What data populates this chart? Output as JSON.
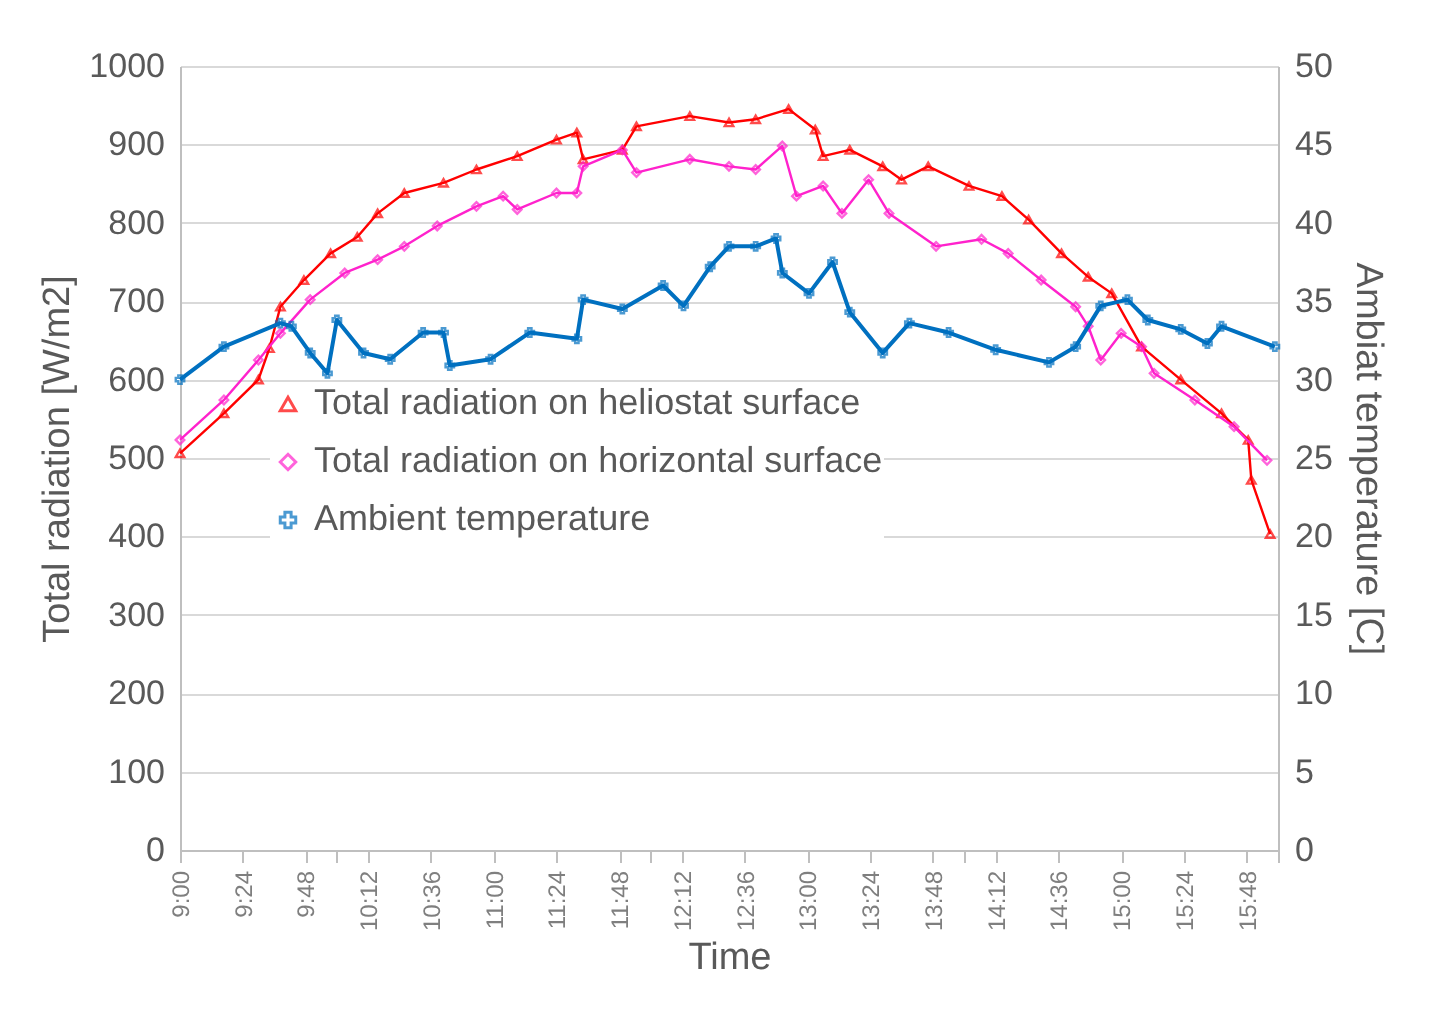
{
  "chart_data": {
    "type": "line",
    "xlabel": "Time",
    "ylabel": "Total radiation [W/m2]",
    "y2label": "Ambiat temperature [C]",
    "xlim": [
      9,
      16
    ],
    "xticks": [
      {
        "value": 9,
        "label": "9:00"
      },
      {
        "value": 9.4,
        "label": "9:24"
      },
      {
        "value": 9.8,
        "label": "9:48"
      },
      {
        "value": 10,
        "label": null
      },
      {
        "value": 10.2,
        "label": "10:12"
      },
      {
        "value": 10.6,
        "label": "10:36"
      },
      {
        "value": 11,
        "label": "11:00"
      },
      {
        "value": 11.4,
        "label": "11:24"
      },
      {
        "value": 11.8,
        "label": "11:48"
      },
      {
        "value": 12,
        "label": null
      },
      {
        "value": 12.2,
        "label": "12:12"
      },
      {
        "value": 12.6,
        "label": "12:36"
      },
      {
        "value": 13,
        "label": "13:00"
      },
      {
        "value": 13.4,
        "label": "13:24"
      },
      {
        "value": 13.8,
        "label": "13:48"
      },
      {
        "value": 14,
        "label": null
      },
      {
        "value": 14.2,
        "label": "14:12"
      },
      {
        "value": 14.6,
        "label": "14:36"
      },
      {
        "value": 15,
        "label": "15:00"
      },
      {
        "value": 15.4,
        "label": "15:24"
      },
      {
        "value": 15.8,
        "label": "15:48"
      },
      {
        "value": 16,
        "label": null
      }
    ],
    "ylim": [
      0,
      1000
    ],
    "yticks": [
      0,
      100,
      200,
      300,
      400,
      500,
      600,
      700,
      800,
      900,
      1000
    ],
    "y2lim": [
      0,
      50
    ],
    "y2ticks": [
      0,
      5,
      10,
      15,
      20,
      25,
      30,
      35,
      40,
      45,
      50
    ],
    "grid": "y",
    "legend": "bottom left",
    "line_style": "solid",
    "series": [
      {
        "name": "Total radiation on heliostat surface",
        "color": "#ff0000",
        "marker": "triangle",
        "x": [
          9.0,
          9.28,
          9.5,
          9.57,
          9.64,
          9.79,
          9.96,
          10.13,
          10.26,
          10.43,
          10.68,
          10.89,
          11.15,
          11.4,
          11.53,
          11.57,
          11.82,
          11.91,
          12.25,
          12.5,
          12.67,
          12.88,
          13.05,
          13.1,
          13.27,
          13.48,
          13.6,
          13.77,
          14.03,
          14.24,
          14.41,
          14.62,
          14.79,
          14.94,
          15.13,
          15.38,
          15.64,
          15.81,
          15.83,
          15.95
        ],
        "values": [
          506,
          557,
          600,
          640,
          693,
          727,
          761,
          782,
          812,
          838,
          851,
          868,
          885,
          906,
          915,
          881,
          893,
          923,
          936,
          928,
          932,
          945,
          919,
          885,
          893,
          872,
          855,
          872,
          847,
          834,
          804,
          761,
          731,
          710,
          642,
          600,
          557,
          523,
          472,
          403
        ]
      },
      {
        "name": "Total radiation on horizontal surface",
        "color": "#ff22cc",
        "marker": "diamond",
        "x": [
          9.0,
          9.28,
          9.5,
          9.64,
          9.83,
          10.05,
          10.26,
          10.43,
          10.64,
          10.89,
          11.06,
          11.15,
          11.4,
          11.53,
          11.57,
          11.82,
          11.91,
          12.25,
          12.5,
          12.67,
          12.84,
          12.93,
          13.1,
          13.22,
          13.39,
          13.52,
          13.82,
          14.11,
          14.28,
          14.49,
          14.71,
          14.79,
          14.87,
          15.0,
          15.13,
          15.21,
          15.47,
          15.72,
          15.93
        ],
        "values": [
          523,
          574,
          625,
          659,
          702,
          736,
          753,
          770,
          796,
          821,
          834,
          817,
          838,
          838,
          872,
          893,
          864,
          881,
          872,
          868,
          898,
          834,
          847,
          812,
          855,
          812,
          770,
          779,
          761,
          727,
          693,
          668,
          625,
          659,
          642,
          608,
          574,
          540,
          497
        ]
      },
      {
        "name": "Ambient temperature",
        "color": "#0070c0",
        "marker": "cross",
        "axis": "y2",
        "x": [
          9.0,
          9.28,
          9.64,
          9.71,
          9.83,
          9.94,
          10.0,
          10.17,
          10.34,
          10.55,
          10.68,
          10.72,
          10.98,
          11.23,
          11.53,
          11.57,
          11.82,
          12.08,
          12.21,
          12.38,
          12.5,
          12.67,
          12.8,
          12.84,
          13.01,
          13.16,
          13.27,
          13.48,
          13.65,
          13.9,
          14.2,
          14.54,
          14.71,
          14.87,
          15.04,
          15.17,
          15.38,
          15.55,
          15.64,
          15.98
        ],
        "values": [
          30.0,
          32.1,
          33.6,
          33.4,
          31.7,
          30.4,
          33.8,
          31.7,
          31.3,
          33.0,
          33.0,
          30.9,
          31.3,
          33.0,
          32.6,
          35.1,
          34.5,
          36.0,
          34.7,
          37.2,
          38.5,
          38.5,
          39.0,
          36.8,
          35.5,
          37.5,
          34.3,
          31.7,
          33.6,
          33.0,
          31.9,
          31.1,
          32.1,
          34.7,
          35.1,
          33.8,
          33.2,
          32.3,
          33.4,
          32.1
        ]
      }
    ]
  }
}
